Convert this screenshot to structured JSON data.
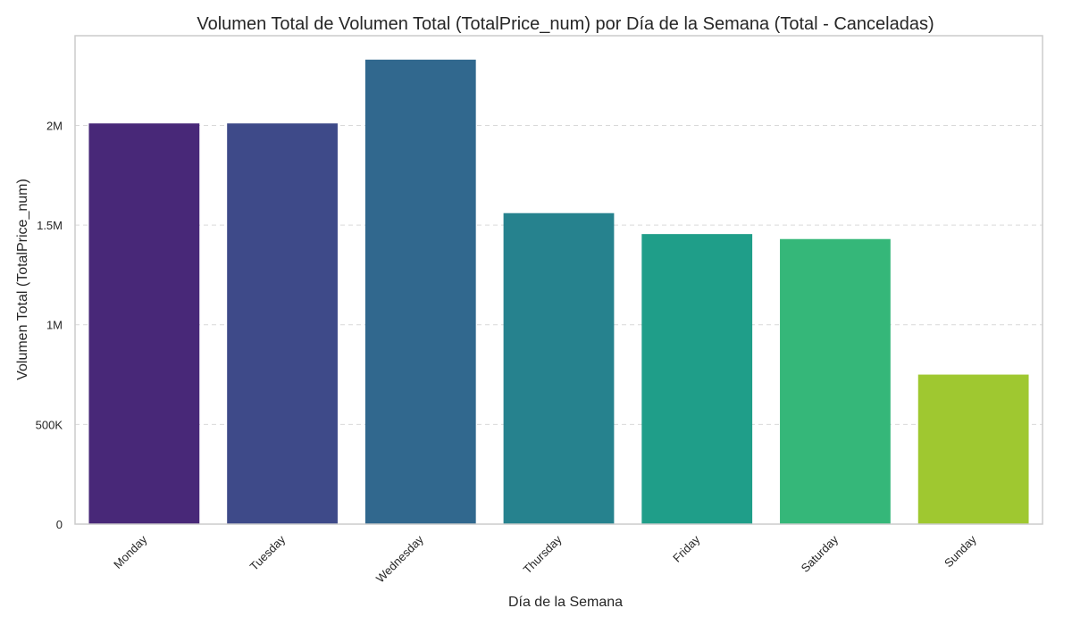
{
  "chart_data": {
    "type": "bar",
    "title": "Volumen Total de Volumen Total (TotalPrice_num) por Día de la Semana (Total - Canceladas)",
    "xlabel": "Día de la Semana",
    "ylabel": "Volumen Total (TotalPrice_num)",
    "categories": [
      "Monday",
      "Tuesday",
      "Wednesday",
      "Thursday",
      "Friday",
      "Saturday",
      "Sunday"
    ],
    "values": [
      2010000,
      2010000,
      2330000,
      1560000,
      1455000,
      1430000,
      750000
    ],
    "colors": [
      "#482878",
      "#3e4a89",
      "#31688e",
      "#26828e",
      "#1f9e89",
      "#35b779",
      "#9fc830"
    ],
    "ylim": [
      0,
      2450000
    ],
    "yticks": [
      0,
      500000,
      1000000,
      1500000,
      2000000
    ],
    "ytick_labels": [
      "0",
      "500K",
      "1M",
      "1.5M",
      "2M"
    ],
    "grid": true,
    "legend": "none"
  }
}
